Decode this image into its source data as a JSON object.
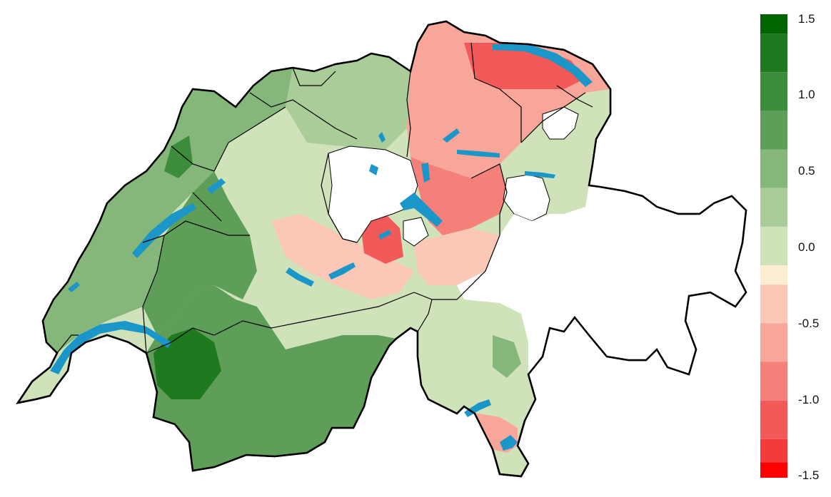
{
  "legend": {
    "ticks": [
      "1.5",
      "1.0",
      "0.5",
      "0.0",
      "-0.5",
      "-1.0",
      "-1.5"
    ],
    "tick_values": [
      1.5,
      1.0,
      0.5,
      0.0,
      -0.5,
      -1.0,
      -1.5
    ],
    "range": [
      -1.5,
      1.5
    ],
    "bins": [
      {
        "from": 1.375,
        "to": 1.5,
        "color": "#006400"
      },
      {
        "from": 1.125,
        "to": 1.375,
        "color": "#1f7a1f"
      },
      {
        "from": 0.875,
        "to": 1.125,
        "color": "#3c8c3c"
      },
      {
        "from": 0.625,
        "to": 0.875,
        "color": "#5e9e58"
      },
      {
        "from": 0.375,
        "to": 0.625,
        "color": "#86b77a"
      },
      {
        "from": 0.125,
        "to": 0.375,
        "color": "#a9cc98"
      },
      {
        "from": -0.125,
        "to": 0.125,
        "color": "#cfe2b9"
      },
      {
        "from": -0.25,
        "to": -0.125,
        "color": "#fbeed5"
      },
      {
        "from": -0.5,
        "to": -0.25,
        "color": "#fbc8b8"
      },
      {
        "from": -0.75,
        "to": -0.5,
        "color": "#f8a699"
      },
      {
        "from": -1.0,
        "to": -0.75,
        "color": "#f5807a"
      },
      {
        "from": -1.25,
        "to": -1.0,
        "color": "#f25a5a"
      },
      {
        "from": -1.4,
        "to": -1.25,
        "color": "#f53a3a"
      },
      {
        "from": -1.5,
        "to": -1.4,
        "color": "#ff0000"
      }
    ]
  },
  "colors": {
    "border": "#000000",
    "lake": "#1a96c8",
    "no_data": "#ffffff"
  }
}
